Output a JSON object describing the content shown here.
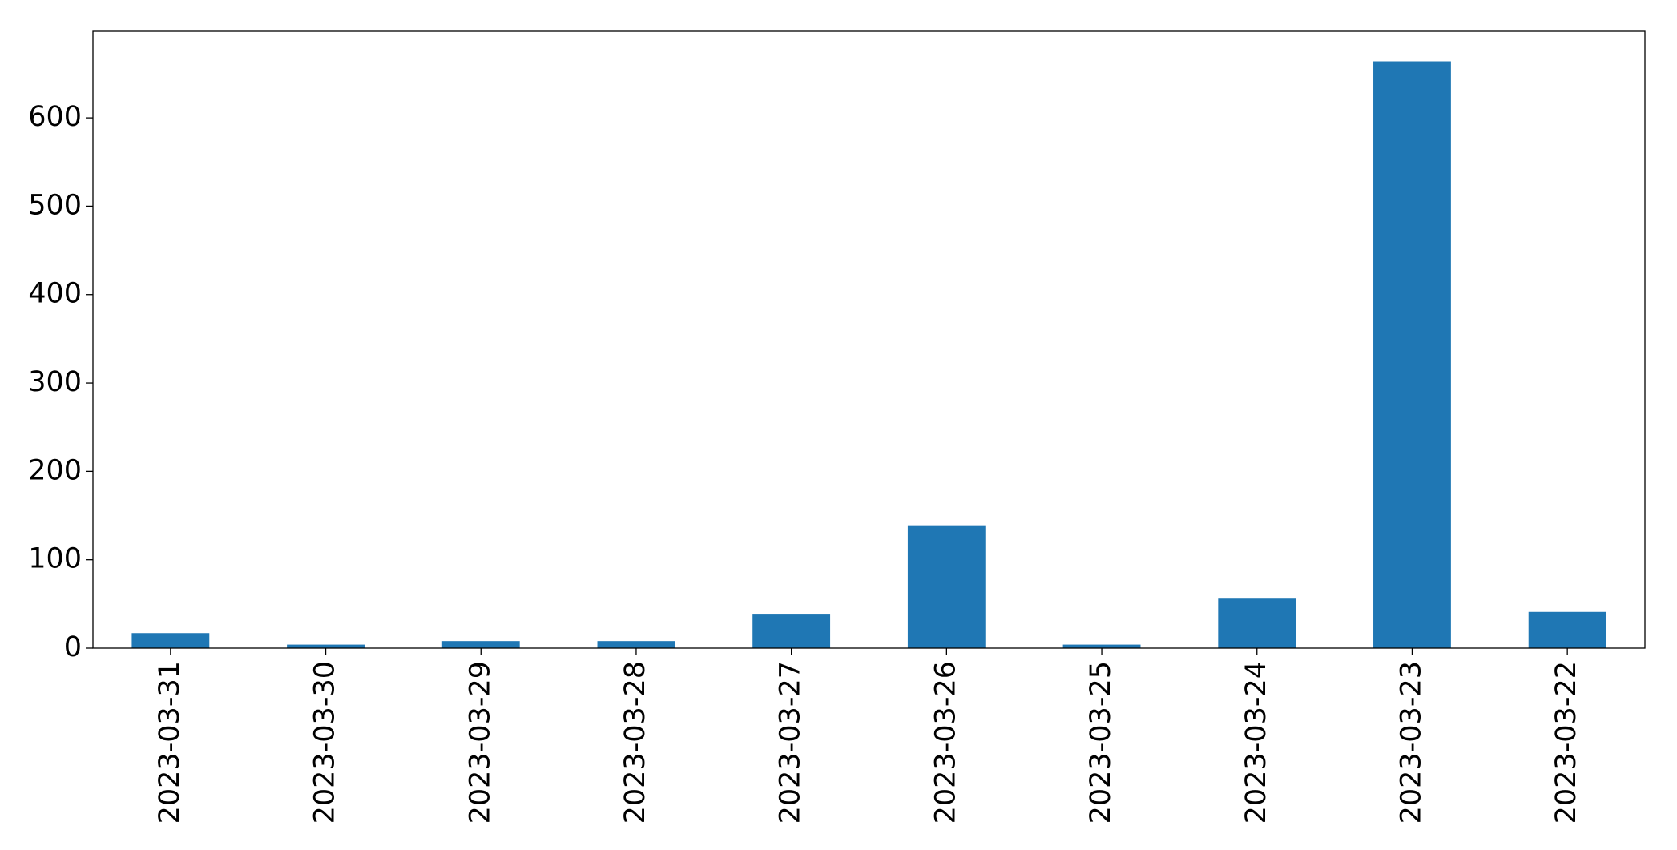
{
  "chart_data": {
    "type": "bar",
    "categories": [
      "2023-03-31",
      "2023-03-30",
      "2023-03-29",
      "2023-03-28",
      "2023-03-27",
      "2023-03-26",
      "2023-03-25",
      "2023-03-24",
      "2023-03-23",
      "2023-03-22"
    ],
    "values": [
      17,
      4,
      8,
      8,
      38,
      139,
      4,
      56,
      664,
      41
    ],
    "color": "#1f77b4",
    "ylim": [
      0,
      698
    ],
    "yticks": [
      0,
      100,
      200,
      300,
      400,
      500,
      600
    ],
    "grid": false
  }
}
